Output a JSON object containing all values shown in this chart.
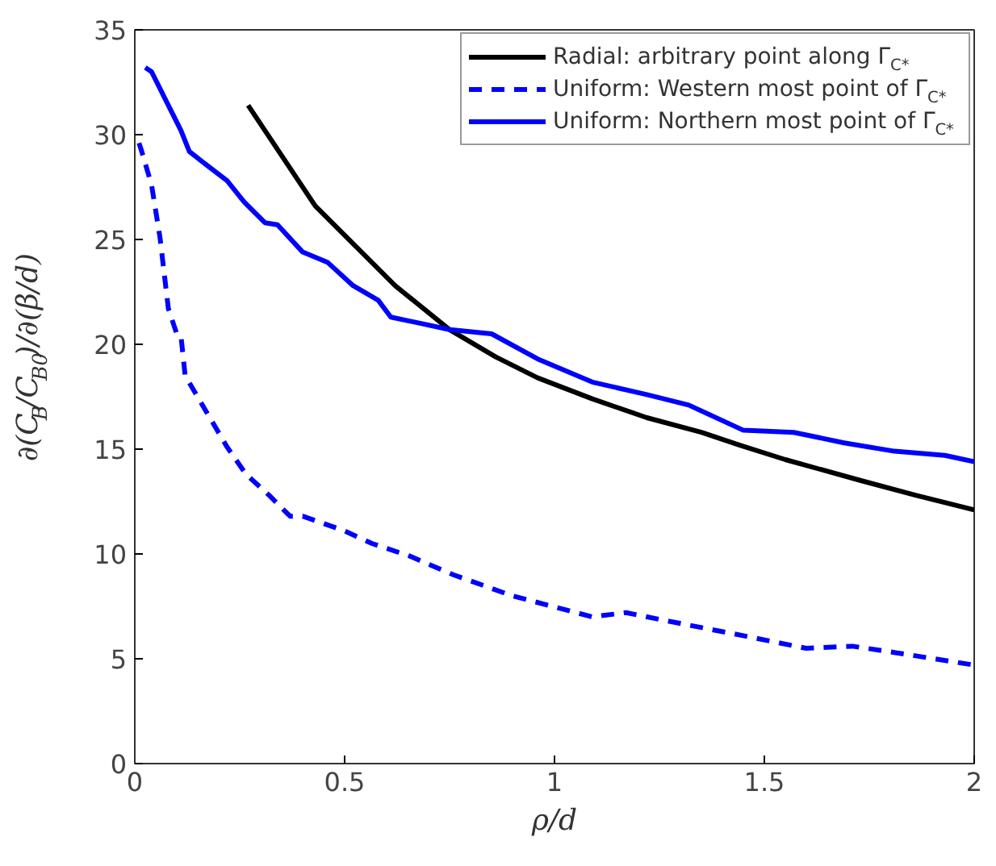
{
  "chart_data": {
    "type": "line",
    "xlabel": "ρ/d",
    "ylabel": "∂(C$_{B}$/C$_{B0}$)/∂(β/d)",
    "xlim": [
      0,
      2
    ],
    "ylim": [
      0,
      35
    ],
    "xticks": [
      0,
      0.5,
      1,
      1.5,
      2
    ],
    "yticks": [
      0,
      5,
      10,
      15,
      20,
      25,
      30,
      35
    ],
    "legend": "top right",
    "series": [
      {
        "name": "Radial: arbitrary point along Γ$_{C*}$",
        "color": "#000000",
        "line_style": "solid",
        "x": [
          0.27,
          0.43,
          0.62,
          0.75,
          0.86,
          0.96,
          1.09,
          1.22,
          1.35,
          1.44,
          1.55,
          1.73,
          1.86,
          2.0
        ],
        "values": [
          31.4,
          26.6,
          22.8,
          20.7,
          19.4,
          18.4,
          17.4,
          16.5,
          15.8,
          15.2,
          14.5,
          13.5,
          12.8,
          12.1
        ]
      },
      {
        "name": "Uniform: Western most point of Γ$_{C*}$",
        "color": "#0000ff",
        "line_style": "dashed",
        "x": [
          0.01,
          0.015,
          0.04,
          0.06,
          0.08,
          0.1,
          0.11,
          0.12,
          0.17,
          0.22,
          0.265,
          0.32,
          0.37,
          0.4,
          0.5,
          0.565,
          0.655,
          0.76,
          0.9,
          1.09,
          1.17,
          1.27,
          1.45,
          1.6,
          1.71,
          1.81,
          2.0
        ],
        "values": [
          29.6,
          29.3,
          27.6,
          25.1,
          21.7,
          20.5,
          20.4,
          18.5,
          16.8,
          15.1,
          13.8,
          12.8,
          11.8,
          11.8,
          11.1,
          10.5,
          9.9,
          9.0,
          8.0,
          7.0,
          7.2,
          6.8,
          6.1,
          5.5,
          5.6,
          5.3,
          4.7
        ]
      },
      {
        "name": "Uniform: Northern most point of Γ$_{C*}$",
        "color": "#0000ff",
        "line_style": "solid",
        "x": [
          0.025,
          0.04,
          0.085,
          0.11,
          0.13,
          0.155,
          0.22,
          0.26,
          0.31,
          0.34,
          0.4,
          0.46,
          0.52,
          0.58,
          0.61,
          0.75,
          0.85,
          0.96,
          1.09,
          1.22,
          1.32,
          1.45,
          1.57,
          1.69,
          1.81,
          1.93,
          2.0
        ],
        "values": [
          33.2,
          33.0,
          31.2,
          30.2,
          29.2,
          28.8,
          27.8,
          26.8,
          25.8,
          25.7,
          24.4,
          23.9,
          22.8,
          22.1,
          21.3,
          20.7,
          20.5,
          19.3,
          18.2,
          17.6,
          17.1,
          15.9,
          15.8,
          15.3,
          14.9,
          14.7,
          14.4
        ]
      }
    ]
  }
}
